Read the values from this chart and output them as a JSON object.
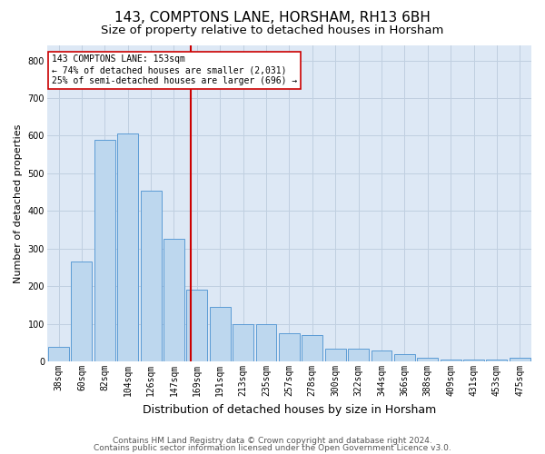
{
  "title1": "143, COMPTONS LANE, HORSHAM, RH13 6BH",
  "title2": "Size of property relative to detached houses in Horsham",
  "xlabel": "Distribution of detached houses by size in Horsham",
  "ylabel": "Number of detached properties",
  "categories": [
    "38sqm",
    "60sqm",
    "82sqm",
    "104sqm",
    "126sqm",
    "147sqm",
    "169sqm",
    "191sqm",
    "213sqm",
    "235sqm",
    "257sqm",
    "278sqm",
    "300sqm",
    "322sqm",
    "344sqm",
    "366sqm",
    "388sqm",
    "409sqm",
    "431sqm",
    "453sqm",
    "475sqm"
  ],
  "values": [
    40,
    265,
    590,
    605,
    455,
    325,
    190,
    145,
    100,
    100,
    75,
    70,
    35,
    35,
    30,
    20,
    10,
    5,
    5,
    5,
    10
  ],
  "bar_color": "#bdd7ee",
  "bar_edge_color": "#5b9bd5",
  "vline_color": "#cc0000",
  "annotation_text": "143 COMPTONS LANE: 153sqm\n← 74% of detached houses are smaller (2,031)\n25% of semi-detached houses are larger (696) →",
  "annotation_box_color": "#ffffff",
  "annotation_box_edge": "#cc0000",
  "ylim": [
    0,
    840
  ],
  "yticks": [
    0,
    100,
    200,
    300,
    400,
    500,
    600,
    700,
    800
  ],
  "footer1": "Contains HM Land Registry data © Crown copyright and database right 2024.",
  "footer2": "Contains public sector information licensed under the Open Government Licence v3.0.",
  "title1_fontsize": 11,
  "title2_fontsize": 9.5,
  "xlabel_fontsize": 9,
  "ylabel_fontsize": 8,
  "tick_fontsize": 7,
  "annotation_fontsize": 7,
  "footer_fontsize": 6.5,
  "background_color": "#ffffff",
  "grid_color": "#c0cfe0",
  "axes_bg_color": "#dde8f5"
}
